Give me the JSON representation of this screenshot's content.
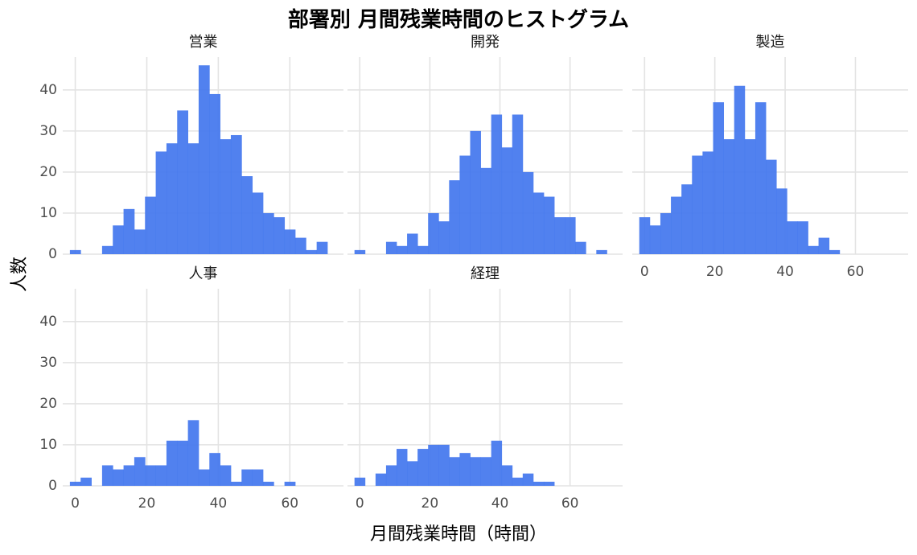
{
  "chart_data": {
    "type": "bar",
    "title": "部署別 月間残業時間のヒストグラム",
    "xlabel": "月間残業時間（時間）",
    "ylabel": "人数",
    "xlim": [
      -3.5,
      75
    ],
    "ylim": [
      0,
      48
    ],
    "x_ticks": [
      0,
      20,
      40,
      60
    ],
    "y_ticks": [
      0,
      10,
      20,
      30,
      40
    ],
    "grid": true,
    "colors": {
      "bar": "#4477ee",
      "grid": "#e3e3e3",
      "tick_text": "#4d4d4d"
    },
    "panels": [
      {
        "name": "営業",
        "bins": [
          [
            -1.5,
            1.5,
            1
          ],
          [
            7.5,
            10.5,
            2
          ],
          [
            10.5,
            13.5,
            7
          ],
          [
            13.5,
            16.5,
            11
          ],
          [
            16.5,
            19.5,
            6
          ],
          [
            19.5,
            22.5,
            14
          ],
          [
            22.5,
            25.5,
            25
          ],
          [
            25.5,
            28.5,
            27
          ],
          [
            28.5,
            31.5,
            35
          ],
          [
            31.5,
            34.5,
            27
          ],
          [
            34.5,
            37.5,
            46
          ],
          [
            37.5,
            40.5,
            39
          ],
          [
            40.5,
            43.5,
            28
          ],
          [
            43.5,
            46.5,
            29
          ],
          [
            46.5,
            49.5,
            19
          ],
          [
            49.5,
            52.5,
            15
          ],
          [
            52.5,
            55.5,
            10
          ],
          [
            55.5,
            58.5,
            9
          ],
          [
            58.5,
            61.5,
            6
          ],
          [
            61.5,
            64.5,
            4
          ],
          [
            64.5,
            67.5,
            1
          ],
          [
            67.5,
            70.5,
            3
          ]
        ]
      },
      {
        "name": "開発",
        "bins": [
          [
            -1.5,
            1.5,
            1
          ],
          [
            7.5,
            10.5,
            3
          ],
          [
            10.5,
            13.5,
            2
          ],
          [
            13.5,
            16.5,
            5
          ],
          [
            16.5,
            19.5,
            2
          ],
          [
            19.5,
            22.5,
            10
          ],
          [
            22.5,
            25.5,
            8
          ],
          [
            25.5,
            28.5,
            18
          ],
          [
            28.5,
            31.5,
            24
          ],
          [
            31.5,
            34.5,
            30
          ],
          [
            34.5,
            37.5,
            21
          ],
          [
            37.5,
            40.5,
            34
          ],
          [
            40.5,
            43.5,
            26
          ],
          [
            43.5,
            46.5,
            34
          ],
          [
            46.5,
            49.5,
            20
          ],
          [
            49.5,
            52.5,
            15
          ],
          [
            52.5,
            55.5,
            14
          ],
          [
            55.5,
            58.5,
            9
          ],
          [
            58.5,
            61.5,
            9
          ],
          [
            61.5,
            64.5,
            3
          ],
          [
            67.5,
            70.5,
            1
          ]
        ]
      },
      {
        "name": "製造",
        "bins": [
          [
            -1.5,
            1.5,
            9
          ],
          [
            1.5,
            4.5,
            7
          ],
          [
            4.5,
            7.5,
            10
          ],
          [
            7.5,
            10.5,
            14
          ],
          [
            10.5,
            13.5,
            17
          ],
          [
            13.5,
            16.5,
            24
          ],
          [
            16.5,
            19.5,
            25
          ],
          [
            19.5,
            22.5,
            37
          ],
          [
            22.5,
            25.5,
            28
          ],
          [
            25.5,
            28.5,
            41
          ],
          [
            28.5,
            31.5,
            28
          ],
          [
            31.5,
            34.5,
            37
          ],
          [
            34.5,
            37.5,
            23
          ],
          [
            37.5,
            40.5,
            16
          ],
          [
            40.5,
            43.5,
            8
          ],
          [
            43.5,
            46.5,
            8
          ],
          [
            46.5,
            49.5,
            2
          ],
          [
            49.5,
            52.5,
            4
          ],
          [
            52.5,
            55.5,
            1
          ]
        ]
      },
      {
        "name": "人事",
        "bins": [
          [
            -1.5,
            1.5,
            1
          ],
          [
            1.5,
            4.5,
            2
          ],
          [
            7.5,
            10.5,
            5
          ],
          [
            10.5,
            13.5,
            4
          ],
          [
            13.5,
            16.5,
            5
          ],
          [
            16.5,
            19.5,
            7
          ],
          [
            19.5,
            22.5,
            5
          ],
          [
            22.5,
            25.5,
            5
          ],
          [
            25.5,
            28.5,
            11
          ],
          [
            28.5,
            31.5,
            11
          ],
          [
            31.5,
            34.5,
            16
          ],
          [
            34.5,
            37.5,
            4
          ],
          [
            37.5,
            40.5,
            8
          ],
          [
            40.5,
            43.5,
            5
          ],
          [
            43.5,
            46.5,
            1
          ],
          [
            46.5,
            49.5,
            4
          ],
          [
            49.5,
            52.5,
            4
          ],
          [
            52.5,
            55.5,
            1
          ],
          [
            58.5,
            61.5,
            1
          ]
        ]
      },
      {
        "name": "経理",
        "bins": [
          [
            -1.5,
            1.5,
            2
          ],
          [
            4.5,
            7.5,
            3
          ],
          [
            7.5,
            10.5,
            5
          ],
          [
            10.5,
            13.5,
            9
          ],
          [
            13.5,
            16.5,
            6
          ],
          [
            16.5,
            19.5,
            9
          ],
          [
            19.5,
            22.5,
            10
          ],
          [
            22.5,
            25.5,
            10
          ],
          [
            25.5,
            28.5,
            7
          ],
          [
            28.5,
            31.5,
            8
          ],
          [
            31.5,
            34.5,
            7
          ],
          [
            34.5,
            37.5,
            7
          ],
          [
            37.5,
            40.5,
            11
          ],
          [
            40.5,
            43.5,
            5
          ],
          [
            43.5,
            46.5,
            2
          ],
          [
            46.5,
            49.5,
            3
          ],
          [
            49.5,
            52.5,
            1
          ],
          [
            52.5,
            55.5,
            1
          ]
        ]
      }
    ]
  }
}
